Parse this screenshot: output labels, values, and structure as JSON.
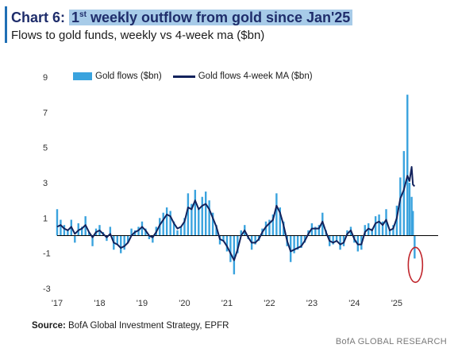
{
  "header": {
    "chart_number": "Chart 6:",
    "title_sup": "st",
    "title_rest": " weekly outflow from gold since Jan'25",
    "title_lead": "1",
    "subtitle": "Flows to gold funds, weekly vs 4-week ma ($bn)"
  },
  "legend": {
    "bar_label": "Gold flows ($bn)",
    "line_label": "Gold flows 4-week MA ($bn)"
  },
  "footer": {
    "source_label": "Source:",
    "source_text": " BofA Global Investment Strategy, EPFR",
    "brand": "BofA GLOBAL RESEARCH"
  },
  "colors": {
    "bars": "#3aa3de",
    "ma_line": "#12225c",
    "highlight": "#c0262d"
  },
  "chart_data": {
    "type": "bar",
    "title": "1st weekly outflow from gold since Jan'25",
    "subtitle": "Flows to gold funds, weekly vs 4-week ma ($bn)",
    "ylim": [
      -3,
      9
    ],
    "yticks": [
      9,
      7,
      5,
      3,
      1,
      -1,
      -3
    ],
    "xlim": [
      2017.0,
      2025.75
    ],
    "xticks": [
      "'17",
      "'18",
      "'19",
      "'20",
      "'21",
      "'22",
      "'23",
      "'24",
      "'25"
    ],
    "xtick_values": [
      2017,
      2018,
      2019,
      2020,
      2021,
      2022,
      2023,
      2024,
      2025
    ],
    "legend_position": "top-left",
    "grid": false,
    "annotation": "red circle around final weekly outflow",
    "series": [
      {
        "name": "Gold flows ($bn)",
        "kind": "bar",
        "x": [
          2017.0,
          2017.083,
          2017.167,
          2017.25,
          2017.333,
          2017.417,
          2017.5,
          2017.583,
          2017.667,
          2017.75,
          2017.833,
          2017.917,
          2018.0,
          2018.083,
          2018.167,
          2018.25,
          2018.333,
          2018.417,
          2018.5,
          2018.583,
          2018.667,
          2018.75,
          2018.833,
          2018.917,
          2019.0,
          2019.083,
          2019.167,
          2019.25,
          2019.333,
          2019.417,
          2019.5,
          2019.583,
          2019.667,
          2019.75,
          2019.833,
          2019.917,
          2020.0,
          2020.083,
          2020.167,
          2020.25,
          2020.333,
          2020.417,
          2020.5,
          2020.583,
          2020.667,
          2020.75,
          2020.833,
          2020.917,
          2021.0,
          2021.083,
          2021.167,
          2021.25,
          2021.333,
          2021.417,
          2021.5,
          2021.583,
          2021.667,
          2021.75,
          2021.833,
          2021.917,
          2022.0,
          2022.083,
          2022.167,
          2022.25,
          2022.333,
          2022.417,
          2022.5,
          2022.583,
          2022.667,
          2022.75,
          2022.833,
          2022.917,
          2023.0,
          2023.083,
          2023.167,
          2023.25,
          2023.333,
          2023.417,
          2023.5,
          2023.583,
          2023.667,
          2023.75,
          2023.833,
          2023.917,
          2024.0,
          2024.083,
          2024.167,
          2024.25,
          2024.333,
          2024.417,
          2024.5,
          2024.583,
          2024.667,
          2024.75,
          2024.833,
          2024.917,
          2025.0,
          2025.083,
          2025.167,
          2025.25,
          2025.3,
          2025.35,
          2025.38,
          2025.42
        ],
        "values": [
          1.5,
          0.9,
          0.6,
          0.3,
          0.9,
          -0.4,
          0.7,
          0.5,
          1.1,
          0.2,
          -0.6,
          0.4,
          0.6,
          0.2,
          -0.3,
          0.5,
          -0.8,
          -0.5,
          -1.0,
          -0.8,
          -0.4,
          0.4,
          0.3,
          0.5,
          0.8,
          0.4,
          -0.2,
          -0.4,
          0.5,
          1.0,
          1.3,
          1.6,
          1.4,
          0.8,
          0.3,
          0.5,
          1.0,
          2.4,
          1.8,
          2.6,
          1.6,
          2.2,
          2.5,
          2.0,
          1.3,
          0.6,
          -0.5,
          -0.3,
          -0.9,
          -1.5,
          -2.2,
          -1.0,
          0.3,
          0.6,
          -0.2,
          -0.8,
          -0.5,
          -0.3,
          0.4,
          0.8,
          0.9,
          1.2,
          2.4,
          1.6,
          0.8,
          -0.6,
          -1.5,
          -1.0,
          -0.8,
          -0.7,
          -0.4,
          0.3,
          0.7,
          0.5,
          0.6,
          1.3,
          0.3,
          -0.6,
          -0.5,
          -0.3,
          -0.8,
          -0.6,
          0.3,
          0.5,
          -0.4,
          -0.9,
          -0.8,
          0.6,
          0.7,
          0.4,
          1.1,
          1.2,
          0.8,
          1.5,
          0.3,
          0.6,
          1.7,
          3.3,
          4.8,
          8.0,
          3.0,
          2.2,
          1.4,
          -1.3
        ]
      },
      {
        "name": "Gold flows 4-week MA ($bn)",
        "kind": "line",
        "x": [
          2017.0,
          2017.083,
          2017.167,
          2017.25,
          2017.333,
          2017.417,
          2017.5,
          2017.583,
          2017.667,
          2017.75,
          2017.833,
          2017.917,
          2018.0,
          2018.083,
          2018.167,
          2018.25,
          2018.333,
          2018.417,
          2018.5,
          2018.583,
          2018.667,
          2018.75,
          2018.833,
          2018.917,
          2019.0,
          2019.083,
          2019.167,
          2019.25,
          2019.333,
          2019.417,
          2019.5,
          2019.583,
          2019.667,
          2019.75,
          2019.833,
          2019.917,
          2020.0,
          2020.083,
          2020.167,
          2020.25,
          2020.333,
          2020.417,
          2020.5,
          2020.583,
          2020.667,
          2020.75,
          2020.833,
          2020.917,
          2021.0,
          2021.083,
          2021.167,
          2021.25,
          2021.333,
          2021.417,
          2021.5,
          2021.583,
          2021.667,
          2021.75,
          2021.833,
          2021.917,
          2022.0,
          2022.083,
          2022.167,
          2022.25,
          2022.333,
          2022.417,
          2022.5,
          2022.583,
          2022.667,
          2022.75,
          2022.833,
          2022.917,
          2023.0,
          2023.083,
          2023.167,
          2023.25,
          2023.333,
          2023.417,
          2023.5,
          2023.583,
          2023.667,
          2023.75,
          2023.833,
          2023.917,
          2024.0,
          2024.083,
          2024.167,
          2024.25,
          2024.333,
          2024.417,
          2024.5,
          2024.583,
          2024.667,
          2024.75,
          2024.833,
          2024.917,
          2025.0,
          2025.083,
          2025.167,
          2025.25,
          2025.3,
          2025.35,
          2025.38,
          2025.42
        ],
        "values": [
          0.5,
          0.6,
          0.4,
          0.3,
          0.5,
          0.1,
          0.3,
          0.4,
          0.6,
          0.2,
          -0.1,
          0.2,
          0.3,
          0.1,
          -0.1,
          0.1,
          -0.4,
          -0.5,
          -0.7,
          -0.6,
          -0.4,
          0.0,
          0.2,
          0.3,
          0.5,
          0.3,
          0.0,
          -0.1,
          0.2,
          0.6,
          0.9,
          1.2,
          1.1,
          0.7,
          0.4,
          0.5,
          0.8,
          1.6,
          1.5,
          2.0,
          1.5,
          1.7,
          1.8,
          1.5,
          1.0,
          0.5,
          -0.2,
          -0.3,
          -0.6,
          -1.0,
          -1.4,
          -0.8,
          0.0,
          0.3,
          -0.1,
          -0.4,
          -0.4,
          -0.2,
          0.2,
          0.5,
          0.7,
          0.9,
          1.7,
          1.3,
          0.6,
          -0.3,
          -0.9,
          -0.8,
          -0.7,
          -0.6,
          -0.3,
          0.1,
          0.4,
          0.4,
          0.4,
          0.8,
          0.2,
          -0.3,
          -0.4,
          -0.3,
          -0.5,
          -0.4,
          0.1,
          0.3,
          -0.2,
          -0.5,
          -0.5,
          0.2,
          0.4,
          0.3,
          0.7,
          0.8,
          0.6,
          0.9,
          0.3,
          0.4,
          1.0,
          2.1,
          2.6,
          3.4,
          3.1,
          3.9,
          2.9,
          2.8
        ]
      }
    ]
  }
}
